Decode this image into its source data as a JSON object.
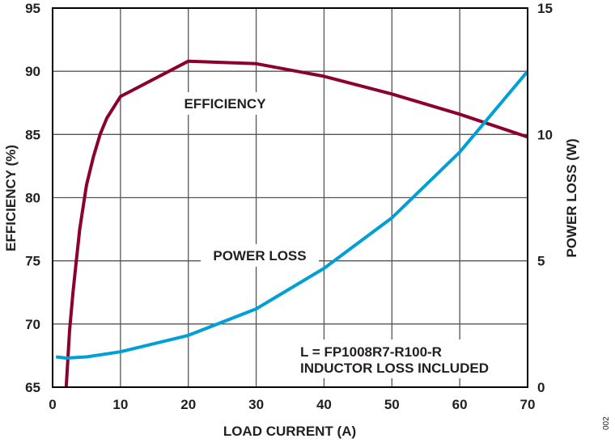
{
  "chart_data": {
    "type": "line",
    "xlabel": "LOAD CURRENT (A)",
    "ylabel": "EFFICIENCY (%)",
    "y2label": "POWER LOSS (W)",
    "xlim": [
      0,
      70
    ],
    "ylim": [
      65,
      95
    ],
    "y2lim": [
      0,
      15
    ],
    "xticks": [
      0,
      10,
      20,
      30,
      40,
      50,
      60,
      70
    ],
    "yticks": [
      65,
      70,
      75,
      80,
      85,
      90,
      95
    ],
    "y2ticks": [
      0,
      5,
      10,
      15
    ],
    "grid": true,
    "series": [
      {
        "name": "EFFICIENCY",
        "axis": "left",
        "color": "#8b0030",
        "x": [
          2,
          2.5,
          3,
          3.5,
          4,
          5,
          6,
          7,
          8,
          10,
          20,
          30,
          40,
          50,
          60,
          70
        ],
        "y": [
          65,
          69.5,
          72.5,
          75,
          77.5,
          81,
          83.2,
          85,
          86.3,
          88,
          90.8,
          90.6,
          89.6,
          88.2,
          86.6,
          84.8
        ]
      },
      {
        "name": "POWER LOSS",
        "axis": "right",
        "color": "#009fd6",
        "x": [
          0.5,
          2,
          5,
          10,
          20,
          30,
          40,
          50,
          60,
          70
        ],
        "y": [
          1.2,
          1.15,
          1.2,
          1.4,
          2.05,
          3.1,
          4.7,
          6.7,
          9.3,
          12.5
        ]
      }
    ],
    "annotations": [
      "L = FP1008R7-R100-R",
      "INDUCTOR LOSS INCLUDED"
    ],
    "figure_id": "002"
  }
}
